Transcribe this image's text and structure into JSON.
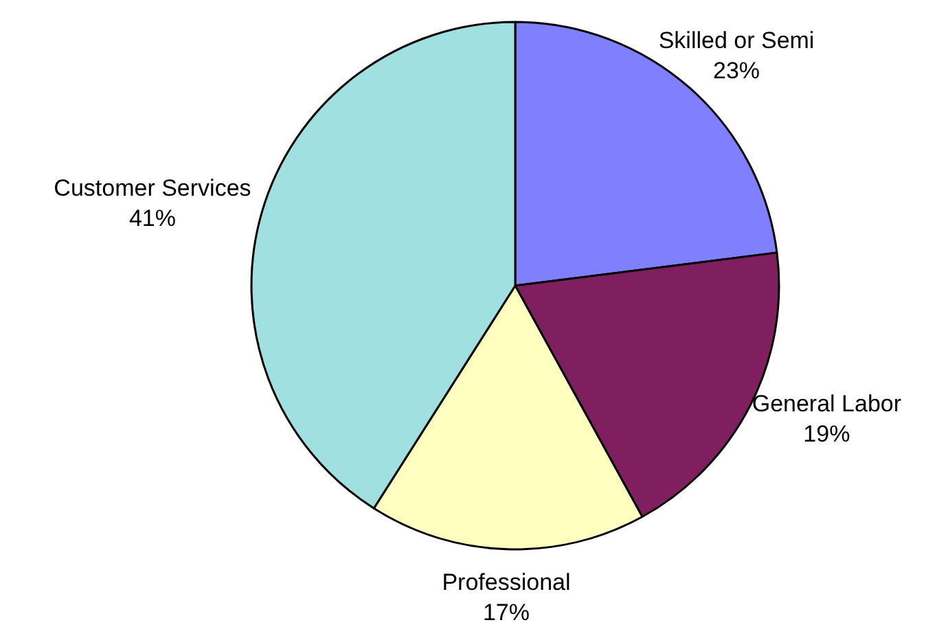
{
  "chart_data": {
    "type": "pie",
    "categories": [
      "Skilled or Semi",
      "General Labor",
      "Professional",
      "Customer Services"
    ],
    "values": [
      23,
      19,
      17,
      41
    ],
    "colors": [
      "#8080ff",
      "#801f5f",
      "#ffffc0",
      "#a0e0e0"
    ],
    "value_labels": [
      "23%",
      "19%",
      "17%",
      "41%"
    ],
    "legend": false
  }
}
